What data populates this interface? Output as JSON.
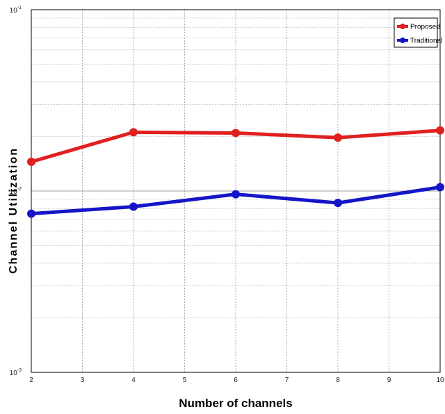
{
  "chart_data": {
    "type": "line",
    "xlabel": "Number of channels",
    "ylabel": "Channel Utilization",
    "yscale": "log",
    "xlim": [
      2,
      10
    ],
    "ylim": [
      0.001,
      0.1
    ],
    "x_ticks": [
      2,
      3,
      4,
      5,
      6,
      7,
      8,
      9,
      10
    ],
    "y_ticks": [
      {
        "value": 0.1,
        "base": "10",
        "exp": "-1"
      },
      {
        "value": 0.01,
        "base": "10",
        "exp": "-2"
      },
      {
        "value": 0.001,
        "base": "10",
        "exp": "-3"
      }
    ],
    "grid": true,
    "legend_position": "top-right",
    "series": [
      {
        "name": "Proposed",
        "color": "#e0201f",
        "x": [
          2,
          4,
          6,
          8,
          10
        ],
        "y": [
          0.0145,
          0.0211,
          0.0209,
          0.0197,
          0.0216
        ]
      },
      {
        "name": "Traditional",
        "color": "#1515c8",
        "x": [
          2,
          4,
          6,
          8,
          10
        ],
        "y": [
          0.0075,
          0.0082,
          0.0096,
          0.0086,
          0.0105
        ]
      }
    ]
  }
}
